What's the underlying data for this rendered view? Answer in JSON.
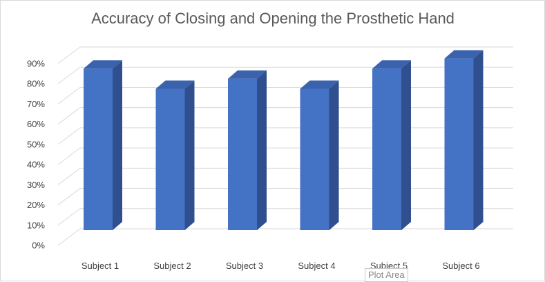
{
  "chart_data": {
    "type": "bar",
    "title": "Accuracy of Closing and Opening the Prosthetic Hand",
    "categories": [
      "Subject 1",
      "Subject 2",
      "Subject 3",
      "Subject 4",
      "Subject 5",
      "Subject 6"
    ],
    "values": [
      80,
      70,
      75,
      70,
      80,
      85
    ],
    "value_unit": "%",
    "ylim": [
      0,
      90
    ],
    "y_ticks": [
      "0%",
      "10%",
      "20%",
      "30%",
      "40%",
      "50%",
      "60%",
      "70%",
      "80%",
      "90%"
    ],
    "grid": true,
    "three_d": true,
    "legend": "none"
  },
  "colors": {
    "bar_front": "#4472c4",
    "bar_side": "#2f4f8f",
    "bar_top": "#3a62ad",
    "gridline": "#d9d9d9",
    "title": "#595959"
  },
  "tooltip": {
    "label": "Plot Area"
  }
}
